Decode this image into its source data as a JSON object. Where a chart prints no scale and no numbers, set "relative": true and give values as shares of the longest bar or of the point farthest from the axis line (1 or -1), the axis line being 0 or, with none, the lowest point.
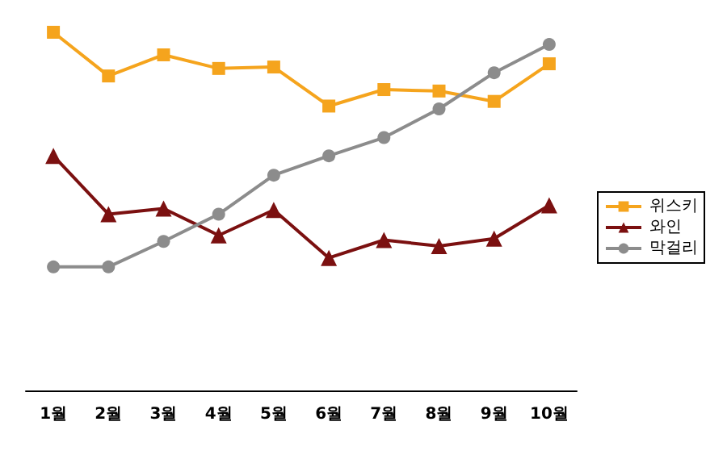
{
  "chart_data": {
    "type": "line",
    "relative": true,
    "categories": [
      "1월",
      "2월",
      "3월",
      "4월",
      "5월",
      "6월",
      "7월",
      "8월",
      "9월",
      "10월"
    ],
    "series": [
      {
        "name": "위스키",
        "color": "#f5a41d",
        "marker": "square",
        "values": [
          1,
          0.878,
          0.937,
          0.899,
          0.903,
          0.794,
          0.84,
          0.836,
          0.807,
          0.912
        ]
      },
      {
        "name": "와인",
        "color": "#7b1010",
        "marker": "triangle",
        "values": [
          0.655,
          0.492,
          0.508,
          0.433,
          0.504,
          0.37,
          0.42,
          0.403,
          0.424,
          0.517
        ]
      },
      {
        "name": "막걸리",
        "color": "#8c8c8c",
        "marker": "circle",
        "values": [
          0.345,
          0.345,
          0.416,
          0.492,
          0.601,
          0.655,
          0.706,
          0.786,
          0.887,
          0.966
        ]
      }
    ],
    "legend": "right",
    "grid": false,
    "line_style": "solid"
  }
}
